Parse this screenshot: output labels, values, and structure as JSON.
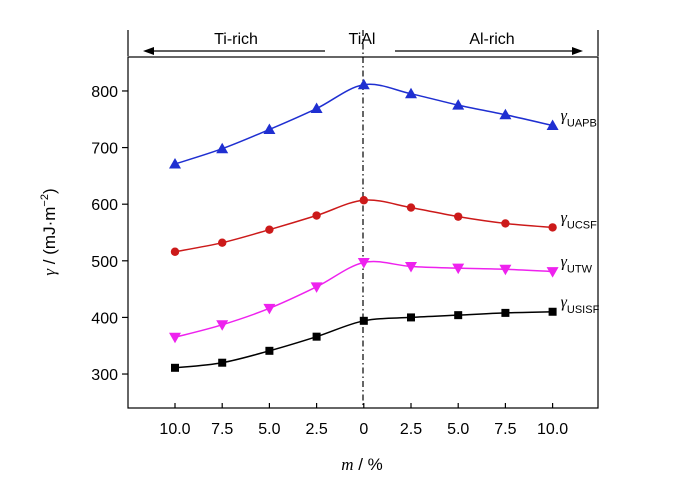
{
  "chart_data": {
    "type": "line",
    "categories": [
      "10.0",
      "7.5",
      "5.0",
      "2.5",
      "0",
      "2.5",
      "5.0",
      "7.5",
      "10.0"
    ],
    "xlabel": {
      "symbol": "m",
      "unit": " / %"
    },
    "ylabel": {
      "symbol": "γ",
      "unit": " / (mJ·m",
      "exponent": "−2",
      "close": ")"
    },
    "ylim": [
      240,
      860
    ],
    "yticks": [
      300,
      400,
      500,
      600,
      700,
      800
    ],
    "top_labels": {
      "left": "Ti-rich",
      "center": "TiAl",
      "right": "Al-rich"
    },
    "series": [
      {
        "name": "UAPB",
        "color": "#1f2fd1",
        "marker": "triangle-up",
        "values": [
          671,
          698,
          732,
          769,
          811,
          795,
          775,
          758,
          739
        ]
      },
      {
        "name": "UCSF",
        "color": "#cc1a1a",
        "marker": "circle",
        "values": [
          516,
          532,
          555,
          580,
          607,
          594,
          578,
          566,
          559
        ]
      },
      {
        "name": "UTW",
        "color": "#ee22ee",
        "marker": "triangle-down",
        "values": [
          365,
          387,
          416,
          454,
          497,
          490,
          487,
          485,
          481
        ]
      },
      {
        "name": "USISF",
        "color": "#000000",
        "marker": "square",
        "values": [
          311,
          320,
          341,
          366,
          394,
          400,
          404,
          408,
          410
        ]
      }
    ]
  }
}
